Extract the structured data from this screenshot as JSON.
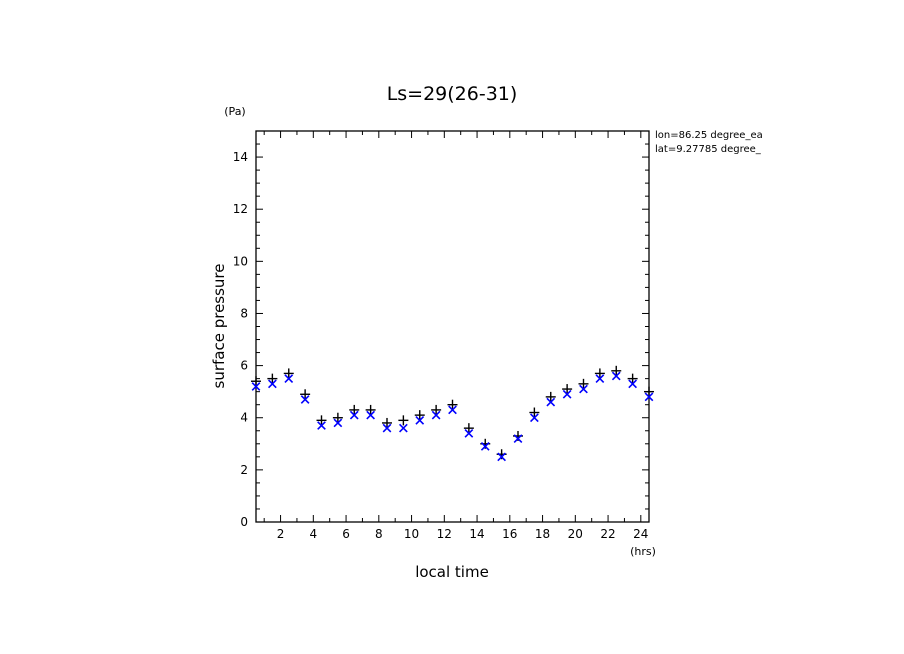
{
  "chart_data": {
    "type": "scatter",
    "title": "Ls=29(26-31)",
    "xlabel": "local time",
    "ylabel": "surface pressure",
    "xunit": "(hrs)",
    "yunit": "(Pa)",
    "xlim": [
      0.5,
      24.5
    ],
    "ylim": [
      0,
      15
    ],
    "xticks": [
      2,
      4,
      6,
      8,
      10,
      12,
      14,
      16,
      18,
      20,
      22,
      24
    ],
    "yticks": [
      0,
      2,
      4,
      6,
      8,
      10,
      12,
      14
    ],
    "grid": false,
    "annotations": [
      "lon=86.25 degree_ea",
      "lat=9.27785 degree_"
    ],
    "series": [
      {
        "marker": "plus",
        "color": "#000000",
        "x": [
          0.5,
          1.5,
          2.5,
          3.5,
          4.5,
          5.5,
          6.5,
          7.5,
          8.5,
          9.5,
          10.5,
          11.5,
          12.5,
          13.5,
          14.5,
          15.5,
          16.5,
          17.5,
          18.5,
          19.5,
          20.5,
          21.5,
          22.5,
          23.5,
          24.5
        ],
        "values": [
          5.4,
          5.5,
          5.7,
          4.9,
          3.9,
          4.0,
          4.3,
          4.3,
          3.8,
          3.9,
          4.1,
          4.3,
          4.5,
          3.6,
          3.0,
          2.6,
          3.3,
          4.2,
          4.8,
          5.1,
          5.3,
          5.7,
          5.8,
          5.5,
          5.0
        ]
      },
      {
        "marker": "x",
        "color": "#0000ff",
        "x": [
          0.5,
          1.5,
          2.5,
          3.5,
          4.5,
          5.5,
          6.5,
          7.5,
          8.5,
          9.5,
          10.5,
          11.5,
          12.5,
          13.5,
          14.5,
          15.5,
          16.5,
          17.5,
          18.5,
          19.5,
          20.5,
          21.5,
          22.5,
          23.5,
          24.5
        ],
        "values": [
          5.2,
          5.3,
          5.5,
          4.7,
          3.7,
          3.8,
          4.1,
          4.1,
          3.6,
          3.6,
          3.9,
          4.1,
          4.3,
          3.4,
          2.9,
          2.5,
          3.2,
          4.0,
          4.6,
          4.9,
          5.1,
          5.5,
          5.6,
          5.3,
          4.8
        ]
      }
    ]
  }
}
